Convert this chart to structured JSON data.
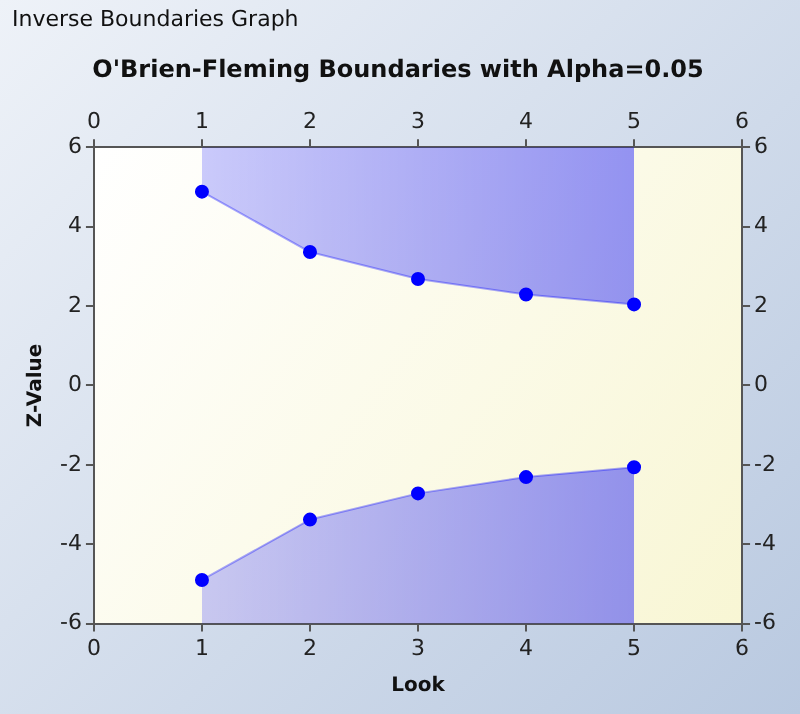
{
  "chart_data": {
    "type": "line",
    "title": "O'Brien-Fleming Boundaries with Alpha=0.05",
    "xlabel": "Look",
    "ylabel": "Z-Value",
    "annotations": [
      "Inverse Boundaries Graph"
    ],
    "x": [
      1,
      2,
      3,
      4,
      5
    ],
    "series": [
      {
        "color": "#0000ff",
        "values": [
          4.88,
          3.36,
          2.68,
          2.29,
          2.04
        ],
        "lower": [
          4.88,
          3.36,
          2.68,
          2.29,
          2.04
        ],
        "upper": [
          6,
          6,
          6,
          6,
          6
        ]
      },
      {
        "color": "#0000ff",
        "values": [
          -4.9,
          -3.38,
          -2.72,
          -2.31,
          -2.06
        ],
        "lower": [
          -6,
          -6,
          -6,
          -6,
          -6
        ],
        "upper": [
          -4.9,
          -3.38,
          -2.72,
          -2.31,
          -2.06
        ]
      }
    ],
    "marker": "circle",
    "grid": false,
    "legend": false,
    "xlim": [
      0,
      6
    ],
    "xticks": [
      0,
      1,
      2,
      3,
      4,
      5,
      6
    ],
    "x2lim": [
      0,
      6
    ],
    "x2ticks": [
      0,
      1,
      2,
      3,
      4,
      5,
      6
    ],
    "ylim": [
      -6,
      6
    ],
    "yticks": [
      -6,
      -4,
      -2,
      0,
      2,
      4,
      6
    ],
    "y2lim": [
      -6,
      6
    ],
    "y2ticks": [
      -6,
      -4,
      -2,
      0,
      2,
      4,
      6
    ]
  }
}
